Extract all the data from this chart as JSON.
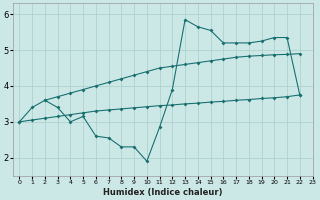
{
  "xlabel": "Humidex (Indice chaleur)",
  "xlim": [
    -0.5,
    23
  ],
  "ylim": [
    1.5,
    6.3
  ],
  "yticks": [
    2,
    3,
    4,
    5,
    6
  ],
  "xticks": [
    0,
    1,
    2,
    3,
    4,
    5,
    6,
    7,
    8,
    9,
    10,
    11,
    12,
    13,
    14,
    15,
    16,
    17,
    18,
    19,
    20,
    21,
    22,
    23
  ],
  "bg_color": "#cce8e6",
  "grid_color": "#aacfcc",
  "line_color": "#1a7070",
  "line1_x": [
    0,
    1,
    2,
    3,
    4,
    5,
    6,
    7,
    8,
    9,
    10,
    11,
    12,
    13,
    14,
    15,
    16,
    17,
    18,
    19,
    20,
    21,
    22
  ],
  "line1_y": [
    3.0,
    3.4,
    3.6,
    3.4,
    3.0,
    3.15,
    2.6,
    2.55,
    2.3,
    2.3,
    1.9,
    2.85,
    3.9,
    5.85,
    5.65,
    5.55,
    5.2,
    5.2,
    5.2,
    5.25,
    5.35,
    5.35,
    3.75
  ],
  "line2_x": [
    2,
    3,
    4,
    5,
    6,
    7,
    8,
    9,
    10,
    11,
    12,
    13,
    14,
    15,
    16,
    17,
    18,
    19,
    20,
    21,
    22
  ],
  "line2_y": [
    3.6,
    3.7,
    3.8,
    3.9,
    4.0,
    4.1,
    4.2,
    4.3,
    4.4,
    4.5,
    4.55,
    4.6,
    4.65,
    4.7,
    4.75,
    4.8,
    4.83,
    4.85,
    4.87,
    4.88,
    4.9
  ],
  "line3_x": [
    0,
    1,
    2,
    3,
    4,
    5,
    6,
    7,
    8,
    9,
    10,
    11,
    12,
    13,
    14,
    15,
    16,
    17,
    18,
    19,
    20,
    21,
    22
  ],
  "line3_y": [
    3.0,
    3.05,
    3.1,
    3.15,
    3.2,
    3.25,
    3.3,
    3.33,
    3.36,
    3.39,
    3.42,
    3.45,
    3.47,
    3.5,
    3.52,
    3.55,
    3.57,
    3.6,
    3.62,
    3.65,
    3.67,
    3.7,
    3.75
  ]
}
